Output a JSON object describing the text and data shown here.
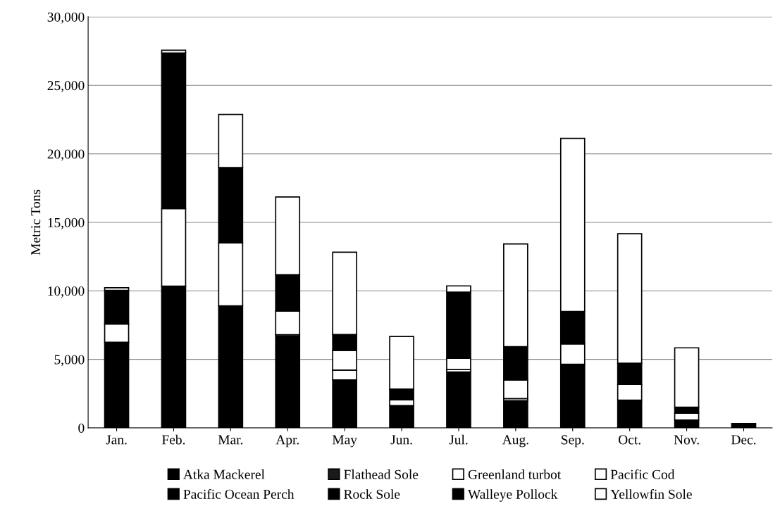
{
  "chart_data": {
    "type": "bar",
    "stacked": true,
    "ylabel": "Metric Tons",
    "categories": [
      "Jan.",
      "Feb.",
      "Mar.",
      "Apr.",
      "May",
      "Jun.",
      "Jul.",
      "Aug.",
      "Sep.",
      "Oct.",
      "Nov.",
      "Dec."
    ],
    "series": [
      {
        "name": "Atka Mackerel",
        "color": "#000000",
        "values": [
          6250,
          10340,
          8900,
          6700,
          3500,
          1630,
          4080,
          1980,
          4640,
          2030,
          570,
          310
        ]
      },
      {
        "name": "Flathead Sole",
        "color": "#1a1a1a",
        "values": [
          null,
          null,
          null,
          null,
          null,
          null,
          null,
          null,
          null,
          null,
          null,
          null
        ]
      },
      {
        "name": "Greenland turbot",
        "color": "#ffffff",
        "values": [
          null,
          null,
          null,
          100,
          720,
          null,
          180,
          160,
          null,
          null,
          null,
          null
        ]
      },
      {
        "name": "Pacific Cod",
        "color": "#ffffff",
        "values": [
          1330,
          5660,
          4600,
          1730,
          1430,
          410,
          820,
          1350,
          1490,
          1150,
          500,
          null
        ]
      },
      {
        "name": "Pacific Ocean Perch",
        "color": "#000000",
        "values": [
          null,
          null,
          null,
          null,
          null,
          null,
          null,
          null,
          null,
          null,
          null,
          null
        ]
      },
      {
        "name": "Rock Sole",
        "color": "#000000",
        "values": [
          null,
          null,
          null,
          null,
          null,
          null,
          null,
          null,
          null,
          null,
          null,
          null
        ]
      },
      {
        "name": "Walleye Pollock",
        "color": "#000000",
        "values": [
          2450,
          11360,
          5500,
          2650,
          1160,
          790,
          4830,
          2440,
          2370,
          1540,
          440,
          null
        ]
      },
      {
        "name": "Yellowfin Sole",
        "color": "#ffffff",
        "values": [
          200,
          200,
          3870,
          5670,
          6010,
          3840,
          450,
          7490,
          12630,
          9450,
          4330,
          null
        ]
      }
    ],
    "ylim": [
      0,
      30000
    ],
    "yticks": [
      {
        "value": 0,
        "label": "0"
      },
      {
        "value": 5000,
        "label": "5,000"
      },
      {
        "value": 10000,
        "label": "10,000"
      },
      {
        "value": 15000,
        "label": "15,000"
      },
      {
        "value": 20000,
        "label": "20,000"
      },
      {
        "value": 25000,
        "label": "25,000"
      },
      {
        "value": 30000,
        "label": "30,000"
      }
    ],
    "grid": "y",
    "legend": "bottom"
  }
}
